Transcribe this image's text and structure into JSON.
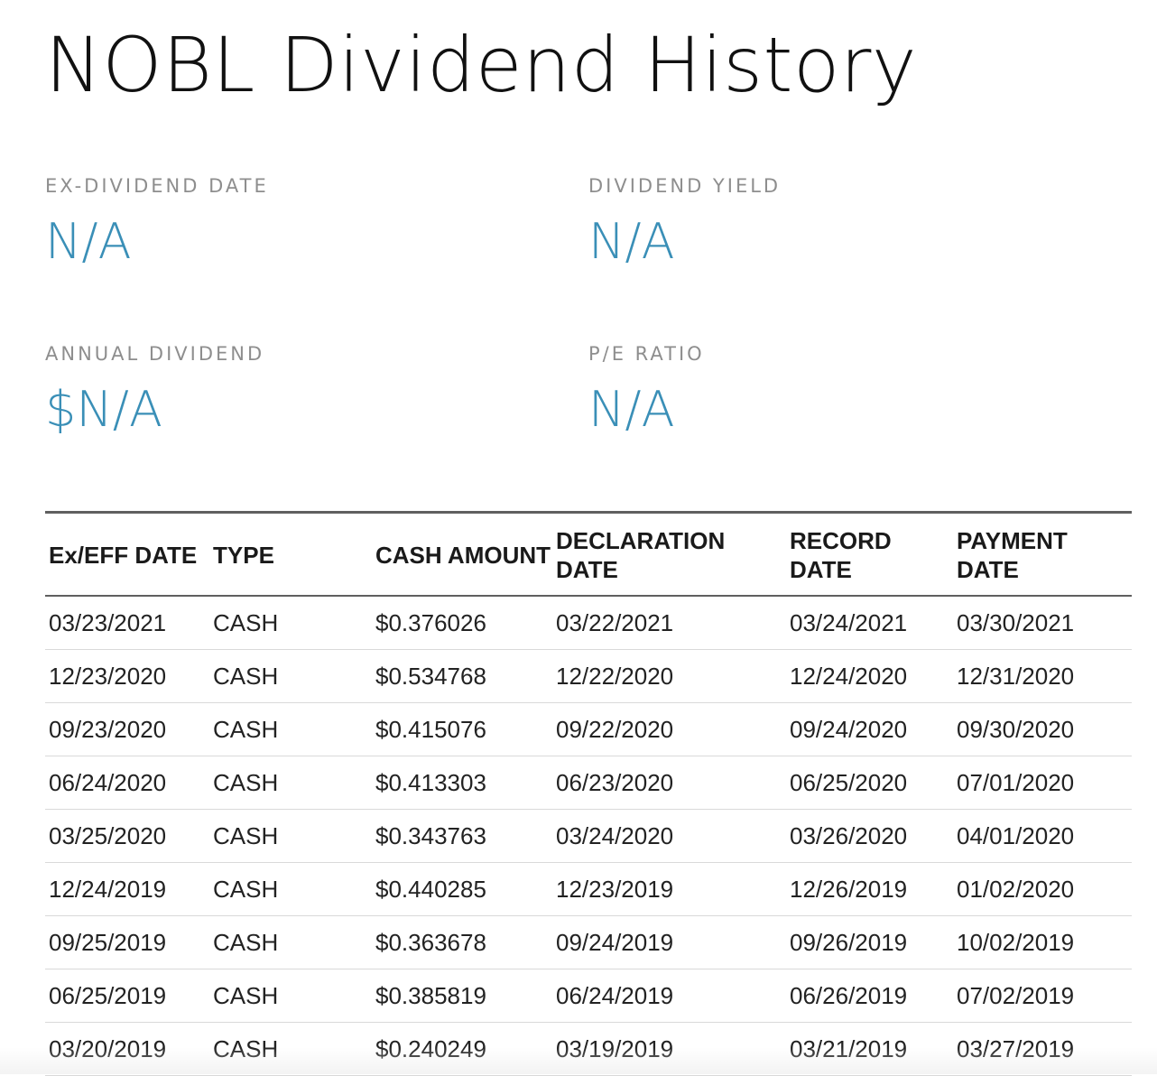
{
  "page": {
    "title": "NOBL Dividend History"
  },
  "stats": {
    "ex_dividend_date": {
      "label": "EX-DIVIDEND DATE",
      "value": "N/A"
    },
    "dividend_yield": {
      "label": "DIVIDEND YIELD",
      "value": "N/A"
    },
    "annual_dividend": {
      "label": "ANNUAL DIVIDEND",
      "value": "$N/A"
    },
    "pe_ratio": {
      "label": "P/E RATIO",
      "value": "N/A"
    }
  },
  "table": {
    "headers": {
      "ex_eff_date": "Ex/EFF DATE",
      "type": "TYPE",
      "cash_amount": "CASH AMOUNT",
      "declaration_date": "DECLARATION DATE",
      "record_date": "RECORD DATE",
      "payment_date": "PAYMENT DATE"
    },
    "rows": [
      {
        "ex_eff_date": "03/23/2021",
        "type": "CASH",
        "cash_amount": "$0.376026",
        "declaration_date": "03/22/2021",
        "record_date": "03/24/2021",
        "payment_date": "03/30/2021"
      },
      {
        "ex_eff_date": "12/23/2020",
        "type": "CASH",
        "cash_amount": "$0.534768",
        "declaration_date": "12/22/2020",
        "record_date": "12/24/2020",
        "payment_date": "12/31/2020"
      },
      {
        "ex_eff_date": "09/23/2020",
        "type": "CASH",
        "cash_amount": "$0.415076",
        "declaration_date": "09/22/2020",
        "record_date": "09/24/2020",
        "payment_date": "09/30/2020"
      },
      {
        "ex_eff_date": "06/24/2020",
        "type": "CASH",
        "cash_amount": "$0.413303",
        "declaration_date": "06/23/2020",
        "record_date": "06/25/2020",
        "payment_date": "07/01/2020"
      },
      {
        "ex_eff_date": "03/25/2020",
        "type": "CASH",
        "cash_amount": "$0.343763",
        "declaration_date": "03/24/2020",
        "record_date": "03/26/2020",
        "payment_date": "04/01/2020"
      },
      {
        "ex_eff_date": "12/24/2019",
        "type": "CASH",
        "cash_amount": "$0.440285",
        "declaration_date": "12/23/2019",
        "record_date": "12/26/2019",
        "payment_date": "01/02/2020"
      },
      {
        "ex_eff_date": "09/25/2019",
        "type": "CASH",
        "cash_amount": "$0.363678",
        "declaration_date": "09/24/2019",
        "record_date": "09/26/2019",
        "payment_date": "10/02/2019"
      },
      {
        "ex_eff_date": "06/25/2019",
        "type": "CASH",
        "cash_amount": "$0.385819",
        "declaration_date": "06/24/2019",
        "record_date": "06/26/2019",
        "payment_date": "07/02/2019"
      },
      {
        "ex_eff_date": "03/20/2019",
        "type": "CASH",
        "cash_amount": "$0.240249",
        "declaration_date": "03/19/2019",
        "record_date": "03/21/2019",
        "payment_date": "03/27/2019"
      }
    ]
  },
  "colors": {
    "accent": "#3a8fb7",
    "label_gray": "#8e8e8e",
    "rule_dark": "#5f5f5f",
    "rule_light": "#d9d9d9"
  }
}
